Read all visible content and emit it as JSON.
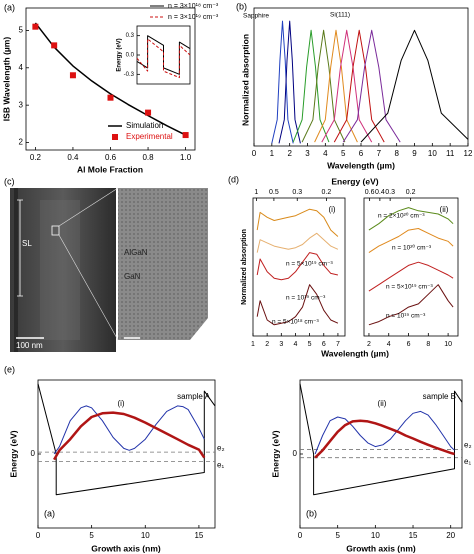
{
  "chart_data": [
    {
      "type": "line",
      "panel": "(a)",
      "xlabel": "Al Mole Fraction",
      "ylabel": "ISB Wavelength (µm)",
      "xlim": [
        0.15,
        1.05
      ],
      "ylim": [
        1.8,
        5.6
      ],
      "xticks": [
        0.2,
        0.4,
        0.6,
        0.8,
        {
          "value": 1,
          "label": "1.0"
        }
      ],
      "yticks": [
        2,
        3,
        4,
        5
      ],
      "legend": "lower right",
      "series": [
        {
          "name": "Simulation",
          "color": "#000000",
          "mode": "line",
          "width": 1.5,
          "x": [
            0.2,
            0.3,
            0.4,
            0.5,
            0.6,
            0.7,
            0.8,
            0.9,
            1.0
          ],
          "values": [
            5.2,
            4.55,
            4.05,
            3.65,
            3.3,
            3.0,
            2.72,
            2.45,
            2.2
          ]
        },
        {
          "name": "Experimental",
          "color": "#dd1111",
          "mode": "markers",
          "x": [
            0.2,
            0.3,
            0.4,
            0.6,
            0.8,
            1.0
          ],
          "values": [
            5.1,
            4.6,
            3.8,
            3.2,
            2.8,
            2.2
          ]
        }
      ]
    },
    {
      "type": "line",
      "ylabel": "Energy (eV)",
      "xlim": [
        0,
        10
      ],
      "ylim": [
        -0.45,
        0.45
      ],
      "yticks": [
        0.3,
        {
          "value": 0,
          "label": "0.0"
        },
        -0.3
      ],
      "legend": "upper right",
      "x": [
        0,
        2,
        2,
        5,
        5,
        8,
        8,
        10
      ],
      "series": [
        {
          "name": "n = 3×10¹⁸ cm⁻³",
          "color": "#000000",
          "mode": "line",
          "values": [
            -0.1,
            -0.2,
            0.3,
            0.15,
            -0.2,
            -0.3,
            0.2,
            0.1
          ]
        },
        {
          "name": "n = 3×10¹⁹ cm⁻³",
          "color": "#cc1111",
          "mode": "line",
          "dash": true,
          "values": [
            -0.05,
            -0.25,
            0.25,
            0.05,
            -0.25,
            -0.35,
            0.15,
            0.0
          ]
        }
      ]
    },
    {
      "type": "line",
      "panel": "(b)",
      "xlabel": "Wavelength (µm)",
      "ylabel": "Normalized absorption",
      "xlim": [
        0,
        12
      ],
      "ylim": [
        0,
        1.05
      ],
      "xticks": [
        0,
        1,
        2,
        3,
        4,
        5,
        6,
        7,
        8,
        9,
        10,
        11,
        12
      ],
      "annotations": [
        "Sapphire",
        "Si(111)"
      ],
      "series": [
        {
          "color": "#2040c0",
          "mode": "line",
          "x": [
            1.0,
            1.3,
            1.45,
            1.6,
            1.75,
            1.9,
            2.2
          ],
          "values": [
            0.02,
            0.2,
            0.65,
            0.95,
            0.65,
            0.2,
            0.02
          ]
        },
        {
          "color": "#000080",
          "mode": "line",
          "x": [
            1.4,
            1.7,
            1.85,
            2.0,
            2.15,
            2.3,
            2.6
          ],
          "values": [
            0.02,
            0.2,
            0.65,
            0.95,
            0.65,
            0.2,
            0.02
          ]
        },
        {
          "color": "#2a9d2a",
          "mode": "line",
          "x": [
            2.2,
            2.7,
            2.95,
            3.2,
            3.45,
            3.7,
            4.2
          ],
          "values": [
            0.03,
            0.2,
            0.6,
            0.88,
            0.6,
            0.2,
            0.03
          ]
        },
        {
          "color": "#5a7a1a",
          "mode": "line",
          "x": [
            2.7,
            3.3,
            3.6,
            3.9,
            4.2,
            4.5,
            5.1
          ],
          "values": [
            0.03,
            0.2,
            0.6,
            0.88,
            0.6,
            0.2,
            0.03
          ]
        },
        {
          "color": "#e08a1e",
          "mode": "line",
          "x": [
            3.4,
            4.0,
            4.3,
            4.6,
            4.9,
            5.2,
            5.8
          ],
          "values": [
            0.03,
            0.2,
            0.6,
            0.88,
            0.6,
            0.2,
            0.03
          ]
        },
        {
          "color": "#d0307a",
          "mode": "line",
          "x": [
            3.8,
            4.5,
            4.85,
            5.2,
            5.55,
            5.9,
            6.6
          ],
          "values": [
            0.03,
            0.2,
            0.6,
            0.88,
            0.6,
            0.2,
            0.03
          ]
        },
        {
          "color": "#c01010",
          "mode": "line",
          "x": [
            4.5,
            5.2,
            5.55,
            5.9,
            6.25,
            6.6,
            7.3
          ],
          "values": [
            0.03,
            0.2,
            0.6,
            0.88,
            0.6,
            0.2,
            0.03
          ]
        },
        {
          "color": "#7a2a9a",
          "mode": "line",
          "x": [
            5.0,
            5.8,
            6.2,
            6.6,
            7.0,
            7.4,
            8.2
          ],
          "values": [
            0.03,
            0.2,
            0.6,
            0.88,
            0.6,
            0.2,
            0.03
          ]
        },
        {
          "color": "#000000",
          "mode": "line",
          "x": [
            6.0,
            7.5,
            8.25,
            9.0,
            9.75,
            10.5,
            12.0
          ],
          "values": [
            0.03,
            0.25,
            0.65,
            0.88,
            0.65,
            0.25,
            0.05
          ]
        }
      ]
    },
    {
      "type": "line",
      "panel": "(d)",
      "subpanel": "(i)",
      "xlabel": "Wavelength (µm)",
      "ylabel": "Normalized absorption",
      "x2label": "Energy (eV)",
      "xlim": [
        1,
        7.5
      ],
      "xticks": [
        1,
        2,
        3,
        4,
        5,
        6,
        7
      ],
      "x2lim": [
        1.24,
        0.165
      ],
      "x2scale": "reciprocal",
      "x2ticks": [
        1,
        0.5,
        0.3,
        0.2
      ],
      "ylim": [
        0,
        4.3
      ],
      "annotations": [
        "n = 5×10¹⁹ cm⁻³",
        "n = 10¹⁹ cm⁻³",
        "n = 5×10¹⁸ cm⁻³"
      ],
      "x": [
        1.3,
        1.5,
        2,
        2.5,
        3,
        3.5,
        4,
        4.5,
        5,
        5.5,
        6,
        6.5,
        7
      ],
      "series": [
        {
          "color": "#d98a1a",
          "mode": "line",
          "values": [
            3.3,
            3.85,
            3.7,
            3.6,
            3.65,
            3.7,
            3.75,
            3.85,
            3.95,
            3.9,
            3.7,
            3.3,
            3.1
          ]
        },
        {
          "color": "#e6b070",
          "mode": "line",
          "values": [
            2.6,
            3.0,
            2.9,
            2.8,
            2.75,
            2.7,
            2.75,
            2.85,
            3.05,
            3.2,
            3.0,
            2.8,
            2.7
          ]
        },
        {
          "color": "#c02020",
          "mode": "line",
          "values": [
            1.9,
            2.4,
            2.0,
            1.8,
            1.75,
            1.8,
            2.0,
            2.3,
            2.6,
            2.55,
            2.2,
            1.95,
            1.9
          ]
        },
        {
          "color": "#6a1010",
          "mode": "line",
          "values": [
            0.6,
            1.1,
            0.5,
            0.35,
            0.4,
            0.45,
            0.6,
            0.9,
            1.6,
            1.3,
            0.8,
            0.5,
            0.4
          ]
        }
      ]
    },
    {
      "type": "line",
      "subpanel": "(ii)",
      "xlim": [
        1.5,
        11
      ],
      "xticks": [
        2,
        4,
        6,
        8,
        10
      ],
      "x2lim": [
        0.827,
        0.113
      ],
      "x2scale": "reciprocal",
      "x2ticks": [
        0.6,
        0.4,
        0.3,
        0.2
      ],
      "ylim": [
        0,
        4.3
      ],
      "annotations": [
        "n = 2×10²⁰ cm⁻³",
        "n = 10²⁰ cm⁻³",
        "n = 5×10¹⁹ cm⁻³",
        "n = 10¹⁹ cm⁻³"
      ],
      "x": [
        2,
        3,
        4,
        5,
        6,
        7,
        8,
        9,
        10,
        10.5
      ],
      "series": [
        {
          "color": "#5a8a1a",
          "mode": "line",
          "values": [
            3.3,
            3.5,
            3.75,
            3.9,
            4.0,
            3.9,
            3.85,
            3.8,
            3.65,
            3.5
          ]
        },
        {
          "color": "#e08a1e",
          "mode": "line",
          "values": [
            2.6,
            2.8,
            2.95,
            3.1,
            3.3,
            3.35,
            3.2,
            3.05,
            2.95,
            2.8
          ]
        },
        {
          "color": "#c02020",
          "mode": "line",
          "values": [
            1.4,
            1.6,
            1.8,
            2.0,
            2.2,
            2.3,
            2.2,
            2.05,
            1.9,
            1.8
          ]
        },
        {
          "color": "#6a1010",
          "mode": "line",
          "values": [
            0.35,
            0.45,
            0.6,
            0.7,
            0.9,
            1.0,
            1.3,
            1.6,
            1.1,
            0.9
          ]
        }
      ]
    },
    {
      "type": "line",
      "panel": "(e)",
      "subpanel": "(i)",
      "label": "(a)",
      "sample": "sample A",
      "xlabel": "Growth axis (nm)",
      "ylabel": "Energy (eV)",
      "xlim": [
        0,
        16.5
      ],
      "xticks": [
        0,
        5,
        10,
        15
      ],
      "ylim": [
        -0.2,
        0.2
      ],
      "yticks": [
        0
      ],
      "levels": [
        {
          "name": "e₂",
          "value": 0.005
        },
        {
          "name": "e₁",
          "value": -0.02
        }
      ],
      "series": [
        {
          "color": "#000000",
          "mode": "line",
          "x": [
            0,
            1.7,
            1.7,
            15.5,
            15.5,
            16.5
          ],
          "values": [
            0.19,
            0.0,
            -0.11,
            -0.05,
            0.17,
            0.13
          ]
        },
        {
          "color": "#2233aa",
          "mode": "line",
          "x": [
            1.5,
            2,
            3,
            4,
            4.5,
            5,
            6,
            7,
            8,
            8.5,
            9,
            10,
            11,
            12,
            13,
            13.5,
            14,
            15,
            15.5
          ],
          "values": [
            0.0,
            0.02,
            0.09,
            0.125,
            0.13,
            0.125,
            0.09,
            0.045,
            0.015,
            0.01,
            0.015,
            0.04,
            0.08,
            0.115,
            0.13,
            0.128,
            0.12,
            0.07,
            0.04
          ]
        },
        {
          "color": "#b01515",
          "mode": "line",
          "width": 2.5,
          "x": [
            1.5,
            2,
            3,
            4,
            5,
            6,
            7,
            8,
            9,
            10,
            11,
            12,
            13,
            14,
            15,
            15.5
          ],
          "values": [
            -0.015,
            0.01,
            0.04,
            0.075,
            0.1,
            0.11,
            0.112,
            0.108,
            0.098,
            0.085,
            0.07,
            0.055,
            0.04,
            0.025,
            0.012,
            -0.01
          ]
        }
      ]
    },
    {
      "type": "line",
      "subpanel": "(ii)",
      "label": "(b)",
      "sample": "sample B",
      "xlabel": "Growth axis (nm)",
      "ylabel": "Energy (eV)",
      "xlim": [
        0,
        21.5
      ],
      "xticks": [
        0,
        5,
        10,
        15,
        20
      ],
      "ylim": [
        -0.2,
        0.2
      ],
      "yticks": [
        0
      ],
      "levels": [
        {
          "name": "e₂",
          "value": 0.012
        },
        {
          "name": "e₁",
          "value": -0.01
        }
      ],
      "series": [
        {
          "color": "#000000",
          "mode": "line",
          "x": [
            0,
            1.8,
            1.8,
            20.5,
            20.5,
            21.5
          ],
          "values": [
            0.19,
            0.0,
            -0.11,
            -0.04,
            0.17,
            0.14
          ]
        },
        {
          "color": "#2233aa",
          "mode": "line",
          "x": [
            2,
            3,
            4,
            5,
            6,
            7,
            8,
            9,
            10,
            11,
            12,
            13,
            14,
            15,
            16,
            17,
            18,
            19,
            20,
            20.5
          ],
          "values": [
            0.0,
            0.05,
            0.09,
            0.1,
            0.095,
            0.075,
            0.05,
            0.03,
            0.02,
            0.025,
            0.04,
            0.065,
            0.09,
            0.11,
            0.115,
            0.105,
            0.08,
            0.05,
            0.02,
            0.01
          ]
        },
        {
          "color": "#b01515",
          "mode": "line",
          "width": 2.5,
          "x": [
            2,
            3,
            4,
            5,
            6,
            7,
            8,
            9,
            10,
            11,
            12,
            13,
            14,
            15,
            16,
            17,
            18,
            19,
            20,
            20.5
          ],
          "values": [
            -0.01,
            0.01,
            0.035,
            0.06,
            0.078,
            0.088,
            0.09,
            0.088,
            0.083,
            0.076,
            0.068,
            0.06,
            0.05,
            0.042,
            0.033,
            0.025,
            0.017,
            0.01,
            0.003,
            0.0
          ]
        }
      ]
    }
  ],
  "micrograph": {
    "panel": "(c)",
    "sl": "SL",
    "scale_left": "100 nm",
    "algan": "AlGaN",
    "gan": "GaN",
    "scale_right": "5 nm"
  }
}
